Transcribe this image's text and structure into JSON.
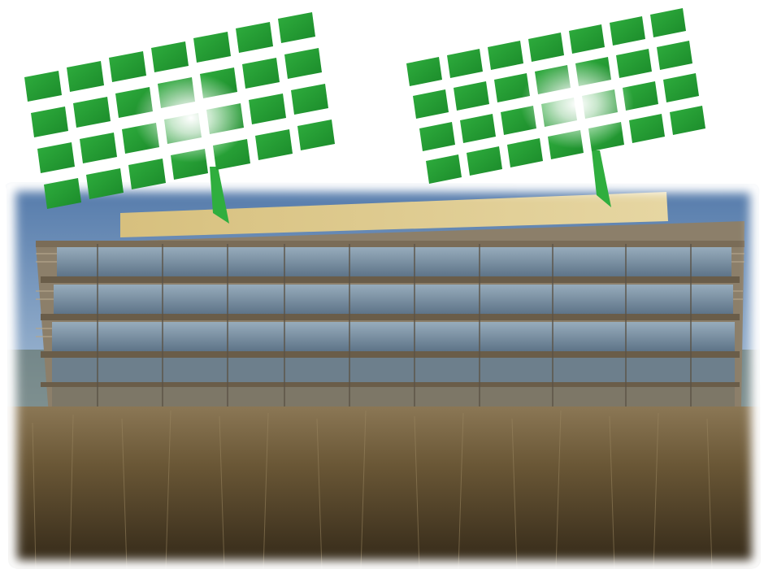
{
  "scene": {
    "description_label": "",
    "colors": {
      "panel_dark": "#1f9a2e",
      "panel_light": "#8fd86a",
      "glare": "#ffffff",
      "sky_top": "#5a7fae",
      "sky_bottom": "#d9e3ee",
      "building_frame": "#8a7b63",
      "building_glass": "#6f8aa0",
      "roof": "#d8c48a",
      "grass": "#6b5a3e"
    },
    "icons": [
      "solar-panel-icon",
      "solar-panel-icon",
      "building",
      "grass-field"
    ],
    "panels": [
      {
        "name": "solar-panel-left",
        "rows": 4,
        "cols": 7
      },
      {
        "name": "solar-panel-right",
        "rows": 4,
        "cols": 7
      }
    ]
  }
}
